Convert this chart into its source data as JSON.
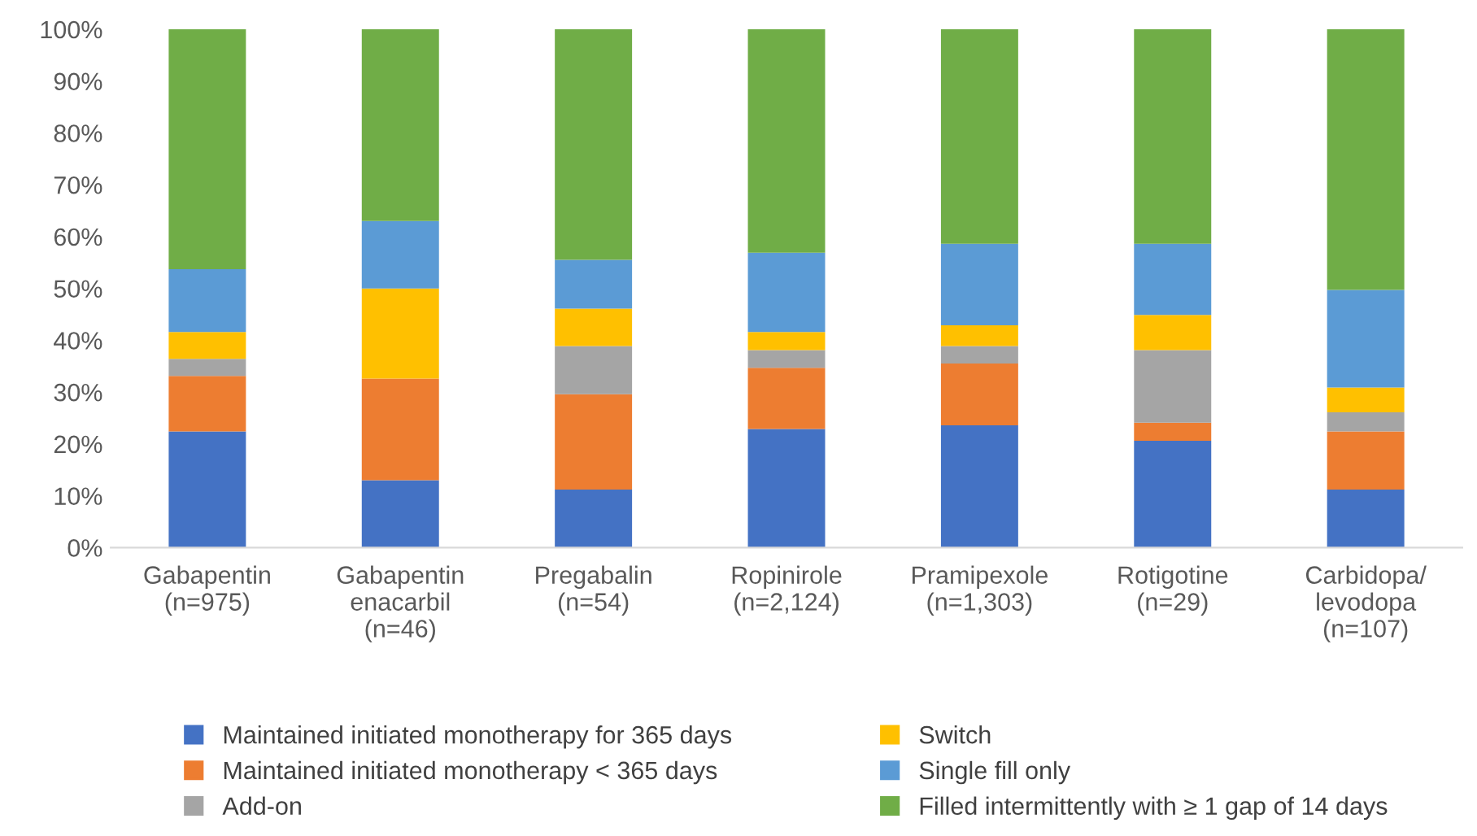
{
  "chart_data": {
    "type": "bar",
    "stacked": true,
    "categories": [
      "Gabapentin\n(n=975)",
      "Gabapentin\nenacarbil\n(n=46)",
      "Pregabalin\n(n=54)",
      "Ropinirole\n(n=2,124)",
      "Pramipexole\n(n=1,303)",
      "Rotigotine\n(n=29)",
      "Carbidopa/\nlevodopa\n(n=107)"
    ],
    "series": [
      {
        "name": "Maintained initiated monotherapy for 365 days",
        "color": "#4472c4",
        "values": [
          22.4,
          13.0,
          11.2,
          22.9,
          23.6,
          20.6,
          11.2
        ]
      },
      {
        "name": "Maintained initiated monotherapy < 365 days",
        "color": "#ed7d31",
        "values": [
          10.7,
          19.6,
          18.4,
          11.8,
          11.9,
          3.5,
          11.2
        ]
      },
      {
        "name": "Add-on",
        "color": "#a5a5a5",
        "values": [
          3.3,
          0,
          9.3,
          3.4,
          3.4,
          14.0,
          3.7
        ]
      },
      {
        "name": "Switch",
        "color": "#ffc000",
        "values": [
          5.2,
          17.4,
          7.2,
          3.5,
          4.0,
          6.8,
          4.8
        ]
      },
      {
        "name": "Single fill only",
        "color": "#5b9bd5",
        "values": [
          12.1,
          13.0,
          9.4,
          15.3,
          15.7,
          13.7,
          18.8
        ]
      },
      {
        "name": "Filled intermittently with ≥ 1 gap of 14 days",
        "color": "#70ad47",
        "values": [
          46.3,
          37.0,
          44.5,
          43.1,
          41.4,
          41.4,
          50.3
        ]
      }
    ],
    "ylim": [
      0,
      100
    ],
    "yticks": [
      {
        "value": 0,
        "label": "0%"
      },
      {
        "value": 10,
        "label": "10%"
      },
      {
        "value": 20,
        "label": "20%"
      },
      {
        "value": 30,
        "label": "30%"
      },
      {
        "value": 40,
        "label": "40%"
      },
      {
        "value": 50,
        "label": "50%"
      },
      {
        "value": 60,
        "label": "60%"
      },
      {
        "value": 70,
        "label": "70%"
      },
      {
        "value": 80,
        "label": "80%"
      },
      {
        "value": 90,
        "label": "90%"
      },
      {
        "value": 100,
        "label": "100%"
      }
    ],
    "grid": false,
    "legend": "bottom"
  }
}
